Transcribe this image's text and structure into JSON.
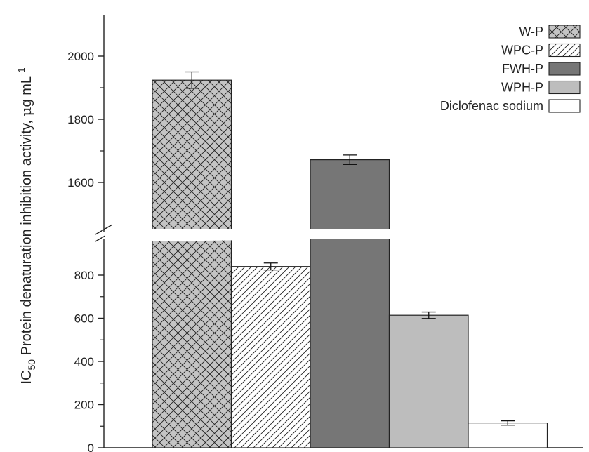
{
  "chart_data": {
    "type": "bar",
    "ylabel": {
      "prefix": "IC",
      "subscript": "50",
      "middle": " Protein denaturation inhibition activity, ",
      "unit_mu": "μ",
      "unit_rest": "g mL",
      "superscript": "-1"
    },
    "axis_break": {
      "lower_max": 900,
      "upper_min": 1480
    },
    "ylim": [
      0,
      2000
    ],
    "yticks": [
      0,
      200,
      400,
      600,
      800,
      1600,
      1800,
      2000
    ],
    "yticks_labels": [
      "0",
      "200",
      "400",
      "600",
      "800",
      "1600",
      "1800",
      "2000"
    ],
    "grid": false,
    "legend_position": "top-right",
    "series": [
      {
        "name": "W-P",
        "value": 1924,
        "error": 26,
        "pattern": "crosshatch",
        "color": "#c4c4c4"
      },
      {
        "name": "WPC-P",
        "value": 840,
        "error": 16,
        "pattern": "diagonal",
        "color": "#ffffff"
      },
      {
        "name": "FWH-P",
        "value": 1672,
        "error": 15,
        "pattern": "solid",
        "color": "#767676"
      },
      {
        "name": "WPH-P",
        "value": 614,
        "error": 15,
        "pattern": "solid",
        "color": "#bdbdbd"
      },
      {
        "name": "Diclofenac sodium",
        "value": 115,
        "error": 10,
        "pattern": "solid",
        "color": "#ffffff"
      }
    ]
  }
}
